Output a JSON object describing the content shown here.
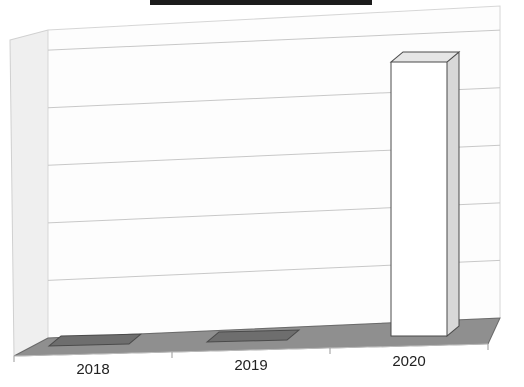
{
  "chart_data": {
    "type": "bar",
    "style": "3d-column",
    "categories": [
      "2018",
      "2019",
      "2020"
    ],
    "values": [
      0,
      0,
      1
    ],
    "title": "",
    "xlabel": "",
    "ylabel": "",
    "ylim": [
      0,
      1
    ],
    "grid": true,
    "legend": "none",
    "colors": {
      "bar_face": "#ffffff",
      "bar_side": "#d8d8d8",
      "bar_top": "#e6e6e6",
      "bar_outline": "#4a4a4a",
      "floor": "#8f8f8f",
      "wall": "#efefef",
      "gridline": "#c8c8c8",
      "title_bar": "#1c1c1c",
      "label": "#222222"
    }
  }
}
